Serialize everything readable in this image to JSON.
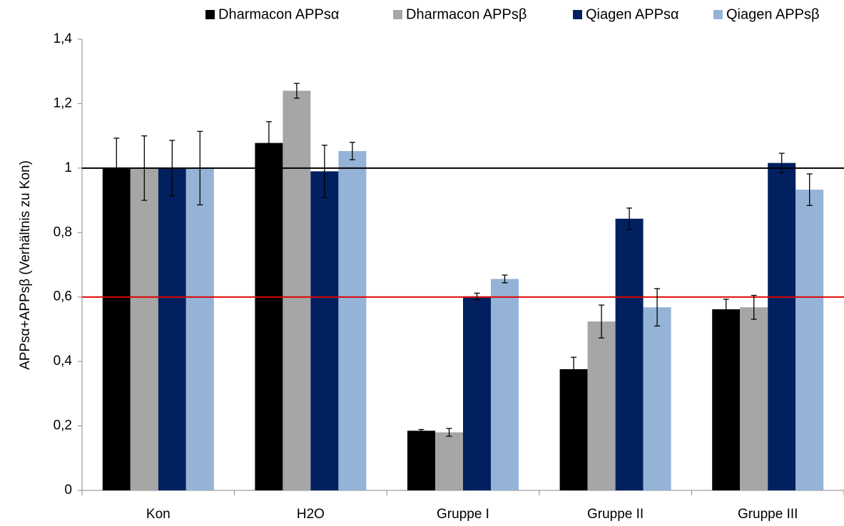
{
  "chart_data": {
    "type": "bar",
    "y_label": "APPsα+APPsβ (Verhältnis zu Kon)",
    "categories": [
      "Kon",
      "H2O",
      "Gruppe I",
      "Gruppe II",
      "Gruppe III"
    ],
    "series": [
      {
        "name": "Dharmacon APPsα",
        "color": "#000000",
        "values": [
          1,
          1.078,
          0.185,
          0.376,
          0.562
        ],
        "errors": [
          0.093,
          0.066,
          0.004,
          0.037,
          0.031
        ]
      },
      {
        "name": "Dharmacon APPsβ",
        "color": "#a6a6a6",
        "values": [
          1,
          1.24,
          0.18,
          0.524,
          0.568
        ],
        "errors": [
          0.1,
          0.023,
          0.012,
          0.051,
          0.037
        ]
      },
      {
        "name": "Qiagen APPsα",
        "color": "#002060",
        "values": [
          1,
          0.99,
          0.602,
          0.843,
          1.016
        ],
        "errors": [
          0.086,
          0.081,
          0.01,
          0.033,
          0.03
        ]
      },
      {
        "name": "Qiagen APPsβ",
        "color": "#95b3d7",
        "values": [
          1,
          1.053,
          0.656,
          0.568,
          0.933
        ],
        "errors": [
          0.114,
          0.027,
          0.012,
          0.058,
          0.049
        ]
      }
    ],
    "ylim": [
      0,
      1.4
    ],
    "yticks": [
      0,
      {
        "value": 0.2,
        "label": "0,2"
      },
      {
        "value": 0.4,
        "label": "0,4"
      },
      {
        "value": 0.6,
        "label": "0,6"
      },
      {
        "value": 0.8,
        "label": "0,8"
      },
      1,
      {
        "value": 1.2,
        "label": "1,2"
      },
      {
        "value": 1.4,
        "label": "1,4"
      }
    ],
    "grid": false,
    "legend": "top-right",
    "reference_lines": [
      {
        "value": 1,
        "color": "#000000"
      },
      {
        "value": 0.6,
        "color": "#e00000"
      }
    ]
  }
}
